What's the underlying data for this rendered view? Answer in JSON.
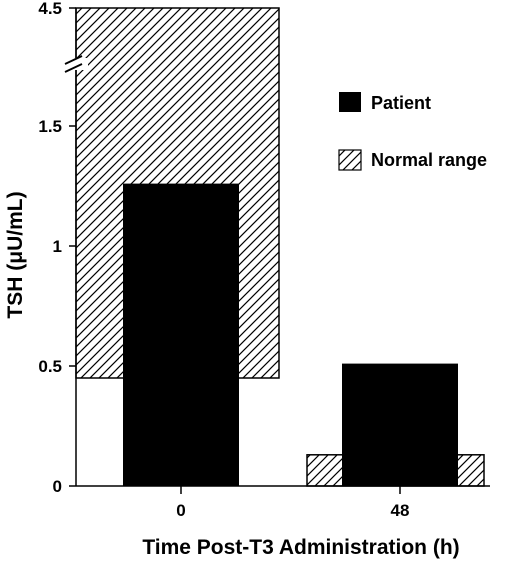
{
  "chart_data": {
    "type": "bar",
    "title": "",
    "xlabel": "Time Post-T3 Administration (h)",
    "ylabel": "TSH (μU/mL)",
    "y_scale": "broken",
    "y_break_between": [
      1.5,
      4.5
    ],
    "ylim": [
      0,
      4.5
    ],
    "categories": [
      "0",
      "48"
    ],
    "y_ticks": [
      "0",
      "0.5",
      "1",
      "1.5",
      "4.5"
    ],
    "series": [
      {
        "name": "Normal range",
        "kind": "range",
        "pattern": "hatched",
        "ranges": [
          [
            0.45,
            4.5
          ],
          [
            0,
            0.13
          ]
        ]
      },
      {
        "name": "Patient",
        "kind": "value",
        "color": "#000000",
        "values": [
          1.26,
          0.51
        ]
      }
    ],
    "legend": {
      "placement": "top-right"
    },
    "grid": false
  }
}
